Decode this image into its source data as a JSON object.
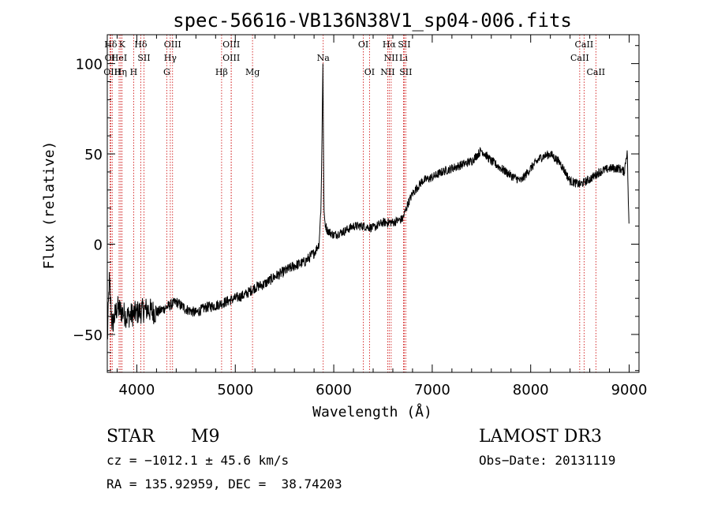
{
  "chart_data": {
    "type": "line",
    "title": "spec-56616-VB136N38V1_sp04-006.fits",
    "xlabel": "Wavelength (Å)",
    "ylabel": "Flux (relative)",
    "xlim": [
      3700,
      9100
    ],
    "ylim": [
      -71,
      116
    ],
    "xticks": [
      4000,
      5000,
      6000,
      7000,
      8000,
      9000
    ],
    "xtick_labels": [
      "4000",
      "5000",
      "6000",
      "7000",
      "8000",
      "9000"
    ],
    "yticks": [
      -50,
      0,
      50,
      100
    ],
    "ytick_labels": [
      "−50",
      "0",
      "50",
      "100"
    ],
    "spectrum_anchors": {
      "x": [
        3700,
        3720,
        3750,
        3800,
        3900,
        4000,
        4100,
        4200,
        4300,
        4400,
        4500,
        4600,
        4700,
        4800,
        4900,
        5000,
        5100,
        5200,
        5300,
        5400,
        5500,
        5600,
        5700,
        5800,
        5850,
        5870,
        5880,
        5885,
        5890,
        5895,
        5900,
        5910,
        5930,
        5950,
        6000,
        6100,
        6200,
        6300,
        6400,
        6500,
        6600,
        6700,
        6750,
        6800,
        6900,
        7000,
        7100,
        7200,
        7300,
        7400,
        7500,
        7600,
        7700,
        7800,
        7900,
        8000,
        8100,
        8200,
        8300,
        8400,
        8500,
        8600,
        8700,
        8800,
        8900,
        8950,
        8980,
        9000
      ],
      "y": [
        -55,
        -20,
        -45,
        -35,
        -40,
        -38,
        -36,
        -38,
        -35,
        -32,
        -36,
        -38,
        -35,
        -34,
        -32,
        -30,
        -28,
        -24,
        -22,
        -18,
        -15,
        -12,
        -10,
        -5,
        0,
        20,
        55,
        80,
        100,
        60,
        20,
        12,
        8,
        7,
        5,
        7,
        10,
        10,
        9,
        12,
        12,
        14,
        22,
        28,
        35,
        37,
        40,
        42,
        44,
        46,
        52,
        46,
        42,
        38,
        35,
        42,
        48,
        50,
        45,
        35,
        33,
        36,
        40,
        42,
        42,
        40,
        52,
        5
      ]
    },
    "line_markers": [
      {
        "label": "Hδ",
        "row": 1,
        "wavelength": 3735
      },
      {
        "label": "K",
        "row": 1,
        "wavelength": 3850
      },
      {
        "label": "Hδ",
        "row": 1,
        "wavelength": 4040
      },
      {
        "label": "OIII",
        "row": 1,
        "wavelength": 4363
      },
      {
        "label": "OIII",
        "row": 1,
        "wavelength": 4959
      },
      {
        "label": "OI",
        "row": 1,
        "wavelength": 6300
      },
      {
        "label": "Hα",
        "row": 1,
        "wavelength": 6563
      },
      {
        "label": "SII",
        "row": 1,
        "wavelength": 6716
      },
      {
        "label": "CaII",
        "row": 1,
        "wavelength": 8542
      },
      {
        "label": "OI",
        "row": 2,
        "wavelength": 3727
      },
      {
        "label": "HeI",
        "row": 2,
        "wavelength": 3820
      },
      {
        "label": "SII",
        "row": 2,
        "wavelength": 4072
      },
      {
        "label": "Hγ",
        "row": 2,
        "wavelength": 4340
      },
      {
        "label": "OIII",
        "row": 2,
        "wavelength": 4959
      },
      {
        "label": "Na",
        "row": 2,
        "wavelength": 5893
      },
      {
        "label": "NII",
        "row": 2,
        "wavelength": 6583
      },
      {
        "label": "Li",
        "row": 2,
        "wavelength": 6708
      },
      {
        "label": "CaII",
        "row": 2,
        "wavelength": 8498
      },
      {
        "label": "OIII",
        "row": 3,
        "wavelength": 3750
      },
      {
        "label": "Hη",
        "row": 3,
        "wavelength": 3835
      },
      {
        "label": "H",
        "row": 3,
        "wavelength": 3968
      },
      {
        "label": "G",
        "row": 3,
        "wavelength": 4304
      },
      {
        "label": "Hβ",
        "row": 3,
        "wavelength": 4861
      },
      {
        "label": "Mg",
        "row": 3,
        "wavelength": 5175
      },
      {
        "label": "OI",
        "row": 3,
        "wavelength": 6363
      },
      {
        "label": "NII",
        "row": 3,
        "wavelength": 6548
      },
      {
        "label": "SII",
        "row": 3,
        "wavelength": 6731
      },
      {
        "label": "CaII",
        "row": 3,
        "wavelength": 8662
      }
    ]
  },
  "info": {
    "object_type": "STAR",
    "subclass": "M9",
    "survey": "LAMOST DR3",
    "cz": "cz = −1012.1 ± 45.6 km/s",
    "obs_date": "Obs−Date: 20131119",
    "coords": "RA = 135.92959, DEC =  38.74203"
  },
  "colors": {
    "spectrum": "#000000",
    "line_marker": "#cc0000",
    "axes": "#000000"
  }
}
